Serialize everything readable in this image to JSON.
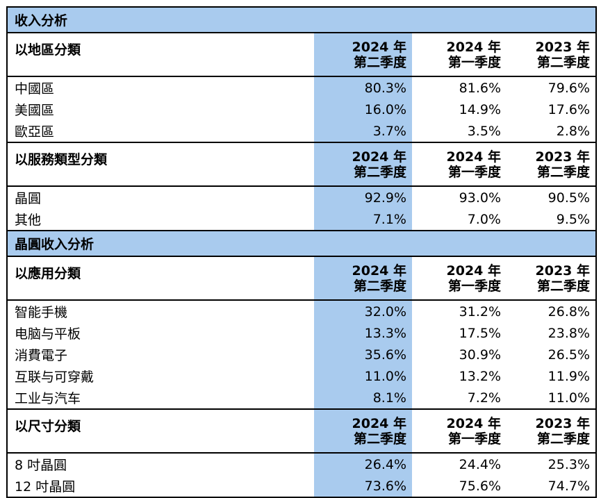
{
  "sections": [
    {
      "title": "收入分析",
      "groups": [
        {
          "header_label": "以地區分類",
          "columns": [
            {
              "year": "2024 年",
              "quarter": "第二季度"
            },
            {
              "year": "2024 年",
              "quarter": "第一季度"
            },
            {
              "year": "2023 年",
              "quarter": "第二季度"
            }
          ],
          "rows": [
            {
              "label": "中國區",
              "values": [
                "80.3%",
                "81.6%",
                "79.6%"
              ]
            },
            {
              "label": "美國區",
              "values": [
                "16.0%",
                "14.9%",
                "17.6%"
              ]
            },
            {
              "label": "歐亞區",
              "values": [
                "3.7%",
                "3.5%",
                "2.8%"
              ]
            }
          ]
        },
        {
          "header_label": "以服務類型分類",
          "columns": [
            {
              "year": "2024 年",
              "quarter": "第二季度"
            },
            {
              "year": "2024 年",
              "quarter": "第一季度"
            },
            {
              "year": "2023 年",
              "quarter": "第二季度"
            }
          ],
          "rows": [
            {
              "label": "晶圓",
              "values": [
                "92.9%",
                "93.0%",
                "90.5%"
              ]
            },
            {
              "label": "其他",
              "values": [
                "7.1%",
                "7.0%",
                "9.5%"
              ]
            }
          ]
        }
      ]
    },
    {
      "title": "晶圓收入分析",
      "groups": [
        {
          "header_label": "以應用分類",
          "columns": [
            {
              "year": "2024 年",
              "quarter": "第二季度"
            },
            {
              "year": "2024 年",
              "quarter": "第一季度"
            },
            {
              "year": "2023 年",
              "quarter": "第二季度"
            }
          ],
          "rows": [
            {
              "label": "智能手機",
              "values": [
                "32.0%",
                "31.2%",
                "26.8%"
              ]
            },
            {
              "label": "电脑与平板",
              "values": [
                "13.3%",
                "17.5%",
                "23.8%"
              ]
            },
            {
              "label": "消費電子",
              "values": [
                "35.6%",
                "30.9%",
                "26.5%"
              ]
            },
            {
              "label": "互联与可穿戴",
              "values": [
                "11.0%",
                "13.2%",
                "11.9%"
              ]
            },
            {
              "label": "工业与汽车",
              "values": [
                "8.1%",
                "7.2%",
                "11.0%"
              ]
            }
          ]
        },
        {
          "header_label": "以尺寸分類",
          "columns": [
            {
              "year": "2024 年",
              "quarter": "第二季度"
            },
            {
              "year": "2024 年",
              "quarter": "第一季度"
            },
            {
              "year": "2023 年",
              "quarter": "第二季度"
            }
          ],
          "rows": [
            {
              "label": "8 吋晶圓",
              "values": [
                "26.4%",
                "24.4%",
                "25.3%"
              ]
            },
            {
              "label": "12 吋晶圓",
              "values": [
                "73.6%",
                "75.6%",
                "74.7%"
              ]
            }
          ]
        }
      ]
    }
  ],
  "colors": {
    "highlight": "#a9cbee",
    "border": "#000000"
  }
}
